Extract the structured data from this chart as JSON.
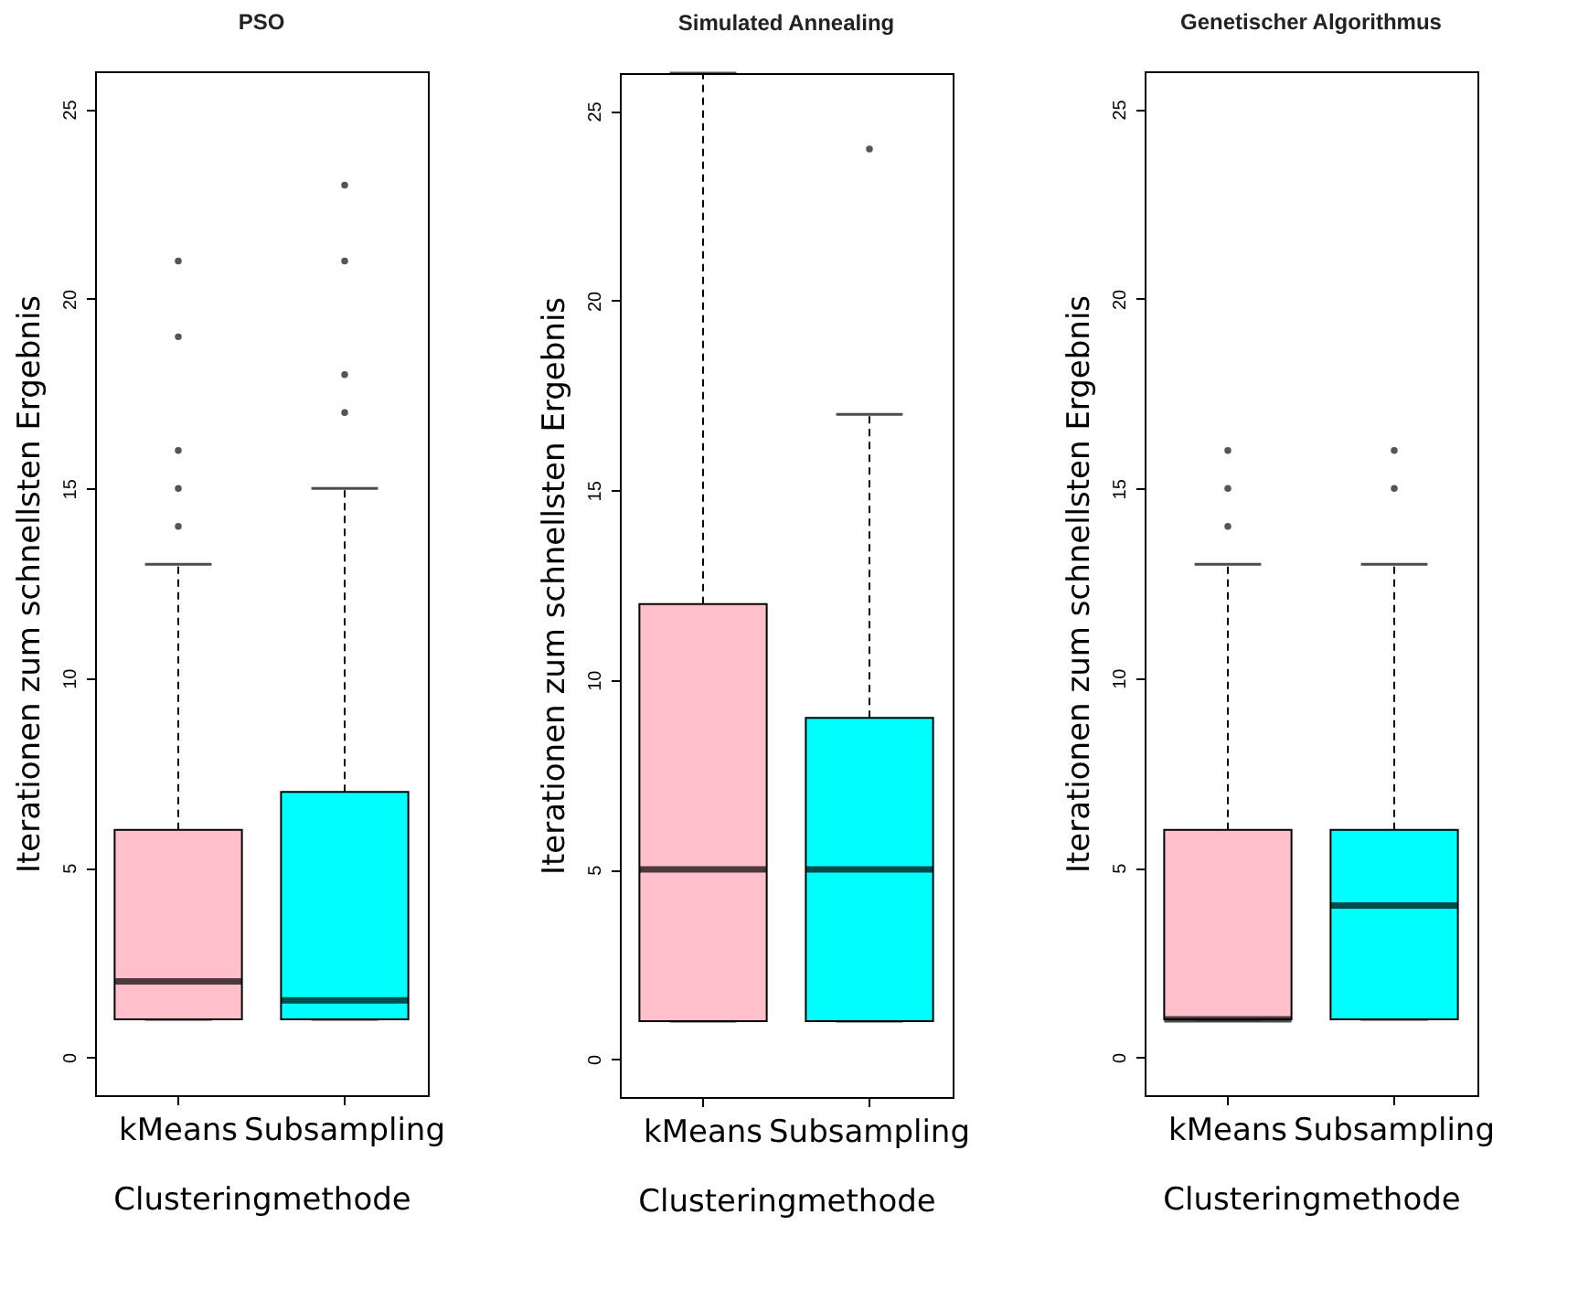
{
  "chart_data": [
    {
      "type": "box",
      "title": "PSO",
      "xlabel": "Clusteringmethode",
      "ylabel": "Iterationen zum schnellsten Ergebnis",
      "categories": [
        "kMeans",
        "Subsampling"
      ],
      "colors": [
        "#ffc0cb",
        "#00ffff"
      ],
      "ylim": [
        -1,
        26
      ],
      "yticks": [
        0,
        5,
        10,
        15,
        20,
        25
      ],
      "grid": false,
      "boxes": [
        {
          "low": 1,
          "q1": 1,
          "median": 2,
          "q3": 6,
          "high": 13,
          "outliers": [
            14,
            15,
            16,
            19,
            21
          ]
        },
        {
          "low": 1,
          "q1": 1,
          "median": 1.5,
          "q3": 7,
          "high": 15,
          "outliers": [
            17,
            18,
            21,
            23
          ]
        }
      ]
    },
    {
      "type": "box",
      "title": "Simulated Annealing",
      "xlabel": "Clusteringmethode",
      "ylabel": "Iterationen zum schnellsten Ergebnis",
      "categories": [
        "kMeans",
        "Subsampling"
      ],
      "colors": [
        "#ffc0cb",
        "#00ffff"
      ],
      "ylim": [
        -1,
        26
      ],
      "yticks": [
        0,
        5,
        10,
        15,
        20,
        25
      ],
      "grid": false,
      "boxes": [
        {
          "low": 1,
          "q1": 1,
          "median": 5,
          "q3": 12,
          "high": 26
        },
        {
          "low": 1,
          "q1": 1,
          "median": 5,
          "q3": 9,
          "high": 17,
          "outliers": [
            24
          ]
        }
      ]
    },
    {
      "type": "box",
      "title": "Genetischer Algorithmus",
      "xlabel": "Clusteringmethode",
      "ylabel": "Iterationen zum schnellsten Ergebnis",
      "categories": [
        "kMeans",
        "Subsampling"
      ],
      "colors": [
        "#ffc0cb",
        "#00ffff"
      ],
      "ylim": [
        -1,
        26
      ],
      "yticks": [
        0,
        5,
        10,
        15,
        20,
        25
      ],
      "grid": false,
      "boxes": [
        {
          "low": 1,
          "q1": 1,
          "median": 1,
          "q3": 6,
          "high": 13,
          "outliers": [
            14,
            15,
            16
          ]
        },
        {
          "low": 1,
          "q1": 1,
          "median": 4,
          "q3": 6,
          "high": 13,
          "outliers": [
            15,
            16
          ]
        }
      ]
    }
  ]
}
